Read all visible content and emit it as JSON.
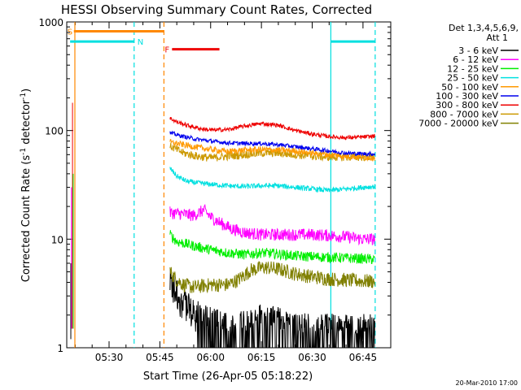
{
  "chart_data": {
    "type": "line",
    "title": "HESSI Observing Summary Count Rates, Corrected",
    "xlabel": "Start Time (26-Apr-05 05:18:22)",
    "ylabel_prefix": "Corrected Count Rate (s",
    "ylabel_sup1": "-1",
    "ylabel_mid": " detector",
    "ylabel_sup2": "-1",
    "ylabel_suffix": ")",
    "yscale": "log",
    "ylim": [
      1,
      1000
    ],
    "xlim_minutes": [
      18.37,
      73.0
    ],
    "x_unit": "minutes after 05:00 UT",
    "x_ticks": [
      {
        "v": 30,
        "label": "05:30"
      },
      {
        "v": 45,
        "label": "05:45"
      },
      {
        "v": 60,
        "label": "06:00"
      },
      {
        "v": 75,
        "label": "06:15"
      },
      {
        "v": 90,
        "label": "06:30"
      },
      {
        "v": 105,
        "label": "06:45"
      }
    ],
    "y_ticks": [
      {
        "v": 1,
        "label": "1"
      },
      {
        "v": 10,
        "label": "10"
      },
      {
        "v": 100,
        "label": "100"
      },
      {
        "v": 1000,
        "label": "1000"
      }
    ],
    "legend_header": [
      "Det 1,3,4,5,6,9,",
      "Att 1"
    ],
    "legend_placement": "right",
    "footer_stamp": "20-Mar-2010 17:00",
    "flags": {
      "S": {
        "label": "S",
        "color": "#ff8800",
        "start": 19.6,
        "end": 46.2,
        "level": 820
      },
      "N": {
        "label": "N",
        "color": "#00e0e0",
        "segments": [
          [
            18.5,
            37.4
          ],
          [
            95.5,
            108.5
          ]
        ],
        "level": 660
      },
      "F": {
        "label": "F",
        "color": "#ee0000",
        "start": 48.6,
        "end": 62.6,
        "level": 560
      }
    },
    "boundaries": [
      {
        "t": 19.9,
        "color": "#ff8800",
        "style": "solid"
      },
      {
        "t": 37.4,
        "color": "#00e0e0",
        "style": "dashed"
      },
      {
        "t": 46.2,
        "color": "#ff8800",
        "style": "dashed"
      },
      {
        "t": 95.5,
        "color": "#00e0e0",
        "style": "solid"
      },
      {
        "t": 108.6,
        "color": "#00e0e0",
        "style": "dashed"
      }
    ],
    "series": [
      {
        "name": "3 - 6 keV",
        "color": "#000000",
        "noise": 0.35,
        "x": [
          48,
          50,
          52,
          54,
          56,
          60,
          65,
          70,
          75,
          80,
          85,
          90,
          95,
          100,
          105,
          108.5
        ],
        "values": [
          3.6,
          3.0,
          2.5,
          2.0,
          1.7,
          1.5,
          1.4,
          1.4,
          1.6,
          1.5,
          1.3,
          1.3,
          1.3,
          1.3,
          1.3,
          1.3
        ]
      },
      {
        "name": "6 - 12 keV",
        "color": "#ff00ff",
        "noise": 0.06,
        "x": [
          48,
          52,
          55,
          58,
          60,
          63,
          66,
          70,
          75,
          80,
          85,
          90,
          95,
          100,
          105,
          108.5
        ],
        "values": [
          17.5,
          17,
          16.5,
          18.5,
          16,
          14,
          12.5,
          11.5,
          11,
          11,
          11,
          11,
          10.8,
          10.5,
          10,
          10
        ]
      },
      {
        "name": "12 - 25 keV",
        "color": "#00ee00",
        "noise": 0.05,
        "x": [
          48,
          50,
          53,
          56,
          60,
          65,
          70,
          75,
          80,
          85,
          90,
          95,
          100,
          105,
          108.5
        ],
        "values": [
          11,
          9.5,
          9,
          8.5,
          8.0,
          7.5,
          7.2,
          7.5,
          7.3,
          7.0,
          6.9,
          6.8,
          6.7,
          6.6,
          6.5
        ]
      },
      {
        "name": "25 - 50 keV",
        "color": "#00e0e0",
        "noise": 0.025,
        "x": [
          48,
          50,
          53,
          56,
          60,
          65,
          70,
          75,
          80,
          85,
          90,
          95,
          100,
          105,
          108.5
        ],
        "values": [
          45,
          38,
          34,
          33,
          32,
          31,
          30.5,
          31,
          31,
          30,
          29,
          28,
          29,
          30,
          30.5
        ]
      },
      {
        "name": "50 - 100 keV",
        "color": "#ff9900",
        "noise": 0.03,
        "x": [
          48,
          52,
          56,
          60,
          65,
          70,
          75,
          80,
          85,
          90,
          95,
          100,
          105,
          108.5
        ],
        "values": [
          78,
          74,
          70,
          67,
          64,
          66,
          67,
          66,
          65,
          62,
          60,
          58,
          57,
          56
        ]
      },
      {
        "name": "100 - 300 keV",
        "color": "#0000ee",
        "noise": 0.02,
        "x": [
          48,
          52,
          56,
          60,
          65,
          70,
          75,
          80,
          85,
          90,
          95,
          100,
          105,
          108.5
        ],
        "values": [
          95,
          88,
          83,
          80,
          77,
          76,
          76,
          74,
          71,
          68,
          65,
          62,
          61,
          61
        ]
      },
      {
        "name": "300 - 800 keV",
        "color": "#ee0000",
        "noise": 0.02,
        "x": [
          48,
          50,
          53,
          57,
          60,
          65,
          70,
          75,
          80,
          85,
          90,
          95,
          100,
          105,
          108.5
        ],
        "values": [
          130,
          120,
          112,
          104,
          101,
          102,
          110,
          116,
          112,
          100,
          93,
          88,
          86,
          87,
          89
        ]
      },
      {
        "name": "800 - 7000 keV",
        "color": "#cc9900",
        "noise": 0.04,
        "x": [
          48,
          52,
          56,
          60,
          65,
          70,
          75,
          80,
          85,
          90,
          95,
          100,
          105,
          108.5
        ],
        "values": [
          72,
          62,
          58,
          56,
          58,
          60,
          62,
          62,
          60,
          58,
          57,
          57,
          57,
          58
        ]
      },
      {
        "name": "7000 - 20000 keV",
        "color": "#808000",
        "noise": 0.07,
        "x": [
          48,
          50,
          52,
          55,
          60,
          65,
          68,
          72,
          76,
          80,
          85,
          90,
          95,
          100,
          105,
          108.5
        ],
        "values": [
          5.0,
          4.2,
          3.8,
          3.6,
          3.8,
          3.8,
          4.2,
          5.2,
          5.5,
          5.3,
          4.8,
          4.5,
          4.3,
          4.2,
          4.1,
          4.1
        ]
      }
    ]
  }
}
